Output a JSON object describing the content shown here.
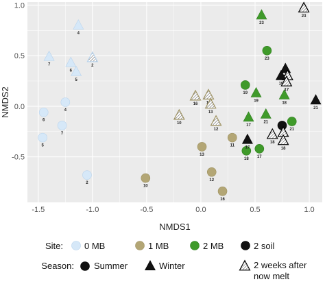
{
  "chart_data": {
    "type": "scatter",
    "xlabel": "NMDS1",
    "ylabel": "NMDS2",
    "xlim": [
      -1.6,
      1.12
    ],
    "ylim": [
      -0.95,
      1.03
    ],
    "xticks": [
      -1.5,
      -1.0,
      -0.5,
      0.0,
      0.5,
      1.0
    ],
    "xtick_labels": [
      "-1.5",
      "-1.0",
      "-0.5",
      "0.0",
      "0.5",
      "1.0"
    ],
    "yticks": [
      -0.5,
      0.0,
      0.5,
      1.0
    ],
    "ytick_labels": [
      "-0.5",
      "0.0",
      "0.5",
      "1.0"
    ],
    "grid": true,
    "sites": [
      {
        "key": "0MB",
        "label": "0 MB",
        "fill": "#d6e8f8",
        "edge": "#b8d3ec"
      },
      {
        "key": "1MB",
        "label": "1 MB",
        "fill": "#b3a675",
        "edge": "#9c9060"
      },
      {
        "key": "2MB",
        "label": "2 MB",
        "fill": "#3f9a2a",
        "edge": "#2f7d1e"
      },
      {
        "key": "2soil",
        "label": "2 soil",
        "fill": "#111111",
        "edge": "#000000"
      }
    ],
    "points": [
      {
        "site": "0MB",
        "season": "winter",
        "x": -1.13,
        "y": 0.8,
        "label": "4"
      },
      {
        "site": "0MB",
        "season": "winter",
        "x": -1.4,
        "y": 0.49,
        "label": "7"
      },
      {
        "site": "0MB",
        "season": "winter",
        "x": -1.2,
        "y": 0.43,
        "label": "6"
      },
      {
        "site": "0MB",
        "season": "winter",
        "x": -1.15,
        "y": 0.34,
        "label": "5"
      },
      {
        "site": "0MB",
        "season": "snowmelt",
        "x": -1.0,
        "y": 0.48,
        "label": "2"
      },
      {
        "site": "0MB",
        "season": "summer",
        "x": -1.25,
        "y": 0.04,
        "label": "4"
      },
      {
        "site": "0MB",
        "season": "summer",
        "x": -1.45,
        "y": -0.06,
        "label": "6"
      },
      {
        "site": "0MB",
        "season": "summer",
        "x": -1.28,
        "y": -0.19,
        "label": "7"
      },
      {
        "site": "0MB",
        "season": "summer",
        "x": -1.46,
        "y": -0.31,
        "label": "5"
      },
      {
        "site": "0MB",
        "season": "summer",
        "x": -1.05,
        "y": -0.68,
        "label": "2"
      },
      {
        "site": "1MB",
        "season": "snowmelt",
        "x": -0.05,
        "y": 0.1,
        "label": "16"
      },
      {
        "site": "1MB",
        "season": "snowmelt",
        "x": 0.07,
        "y": 0.11,
        "label": "11"
      },
      {
        "site": "1MB",
        "season": "snowmelt",
        "x": 0.09,
        "y": 0.02,
        "label": "13"
      },
      {
        "site": "1MB",
        "season": "snowmelt",
        "x": -0.2,
        "y": -0.09,
        "label": "10"
      },
      {
        "site": "1MB",
        "season": "snowmelt",
        "x": 0.14,
        "y": -0.15,
        "label": "12"
      },
      {
        "site": "1MB",
        "season": "summer",
        "x": 0.29,
        "y": -0.31,
        "label": "11"
      },
      {
        "site": "1MB",
        "season": "summer",
        "x": 0.01,
        "y": -0.4,
        "label": "13"
      },
      {
        "site": "1MB",
        "season": "summer",
        "x": 0.1,
        "y": -0.65,
        "label": "12"
      },
      {
        "site": "1MB",
        "season": "summer",
        "x": -0.51,
        "y": -0.71,
        "label": "10"
      },
      {
        "site": "1MB",
        "season": "summer",
        "x": 0.2,
        "y": -0.84,
        "label": "16"
      },
      {
        "site": "2MB",
        "season": "winter",
        "x": 0.56,
        "y": 0.9,
        "label": "23"
      },
      {
        "site": "2MB",
        "season": "summer",
        "x": 0.61,
        "y": 0.55,
        "label": "23"
      },
      {
        "site": "2MB",
        "season": "summer",
        "x": 0.41,
        "y": 0.21,
        "label": "19"
      },
      {
        "site": "2MB",
        "season": "winter",
        "x": 0.51,
        "y": 0.13,
        "label": "19"
      },
      {
        "site": "2MB",
        "season": "winter",
        "x": 0.77,
        "y": 0.11,
        "label": "18"
      },
      {
        "site": "2MB",
        "season": "winter",
        "x": 0.44,
        "y": -0.11,
        "label": "17"
      },
      {
        "site": "2MB",
        "season": "winter",
        "x": 0.6,
        "y": -0.08,
        "label": "21"
      },
      {
        "site": "2MB",
        "season": "summer",
        "x": 0.84,
        "y": -0.15,
        "label": "21"
      },
      {
        "site": "2MB",
        "season": "summer",
        "x": 0.42,
        "y": -0.44,
        "label": "18"
      },
      {
        "site": "2MB",
        "season": "summer",
        "x": 0.54,
        "y": -0.42,
        "label": "17"
      },
      {
        "site": "2soil",
        "season": "snowmelt",
        "x": 0.95,
        "y": 0.97,
        "label": "23"
      },
      {
        "site": "2soil",
        "season": "winter",
        "x": 0.78,
        "y": 0.37,
        "label": "23"
      },
      {
        "site": "2soil",
        "season": "snowmelt",
        "x": 0.8,
        "y": 0.3,
        "label": "21"
      },
      {
        "site": "2soil",
        "season": "winter",
        "x": 0.74,
        "y": 0.3,
        "label": "19"
      },
      {
        "site": "2soil",
        "season": "snowmelt",
        "x": 0.79,
        "y": 0.24,
        "label": "17"
      },
      {
        "site": "2soil",
        "season": "winter",
        "x": 1.06,
        "y": 0.06,
        "label": "21"
      },
      {
        "site": "2soil",
        "season": "summer",
        "x": 0.75,
        "y": -0.19,
        "label": "18"
      },
      {
        "site": "2soil",
        "season": "snowmelt",
        "x": 0.66,
        "y": -0.28,
        "label": "18"
      },
      {
        "site": "2soil",
        "season": "snowmelt",
        "x": 0.76,
        "y": -0.26,
        "label": "17"
      },
      {
        "site": "2soil",
        "season": "snowmelt",
        "x": 0.76,
        "y": -0.34,
        "label": "18"
      },
      {
        "site": "2soil",
        "season": "winter",
        "x": 0.43,
        "y": -0.33,
        "label": "17"
      }
    ],
    "legend": {
      "site_title": "Site:",
      "season_title": "Season:",
      "seasons": [
        {
          "key": "summer",
          "label": "Summer"
        },
        {
          "key": "winter",
          "label": "Winter"
        },
        {
          "key": "snowmelt",
          "label_line1": "2 weeks after",
          "label_line2": "now melt"
        }
      ]
    },
    "colors": {
      "panel_bg": "#ebebeb",
      "grid": "#ffffff",
      "hatch": "#555555"
    }
  }
}
